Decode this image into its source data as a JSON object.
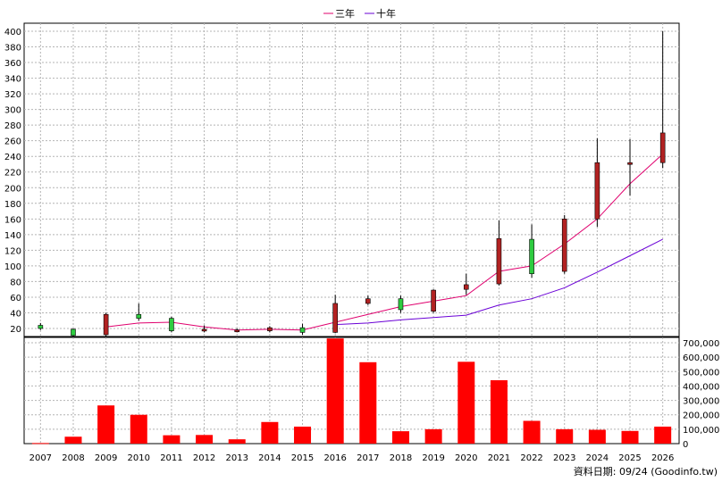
{
  "chart_data": [
    {
      "type": "candlestick",
      "legend": [
        {
          "name": "三年",
          "color": "#e0006e"
        },
        {
          "name": "十年",
          "color": "#6a00d6"
        }
      ],
      "categories": [
        "2007",
        "2008",
        "2009",
        "2010",
        "2011",
        "2012",
        "2013",
        "2014",
        "2015",
        "2016",
        "2017",
        "2018",
        "2019",
        "2020",
        "2021",
        "2022",
        "2023",
        "2024",
        "2025",
        "2026"
      ],
      "candles": [
        {
          "open": 20,
          "close": 24,
          "high": 27,
          "low": 18,
          "color": "#2ecc40"
        },
        {
          "open": 19,
          "close": 11,
          "high": 20,
          "low": 9,
          "color": "#2ecc40"
        },
        {
          "open": 12,
          "close": 38,
          "high": 40,
          "low": 10,
          "color": "#b22222"
        },
        {
          "open": 38,
          "close": 33,
          "high": 52,
          "low": 30,
          "color": "#2ecc40"
        },
        {
          "open": 33,
          "close": 17,
          "high": 35,
          "low": 15,
          "color": "#2ecc40"
        },
        {
          "open": 18,
          "close": 19,
          "high": 24,
          "low": 15,
          "color": "#b22222"
        },
        {
          "open": 17,
          "close": 18,
          "high": 20,
          "low": 15,
          "color": "#b22222"
        },
        {
          "open": 17,
          "close": 21,
          "high": 23,
          "low": 15,
          "color": "#b22222"
        },
        {
          "open": 21,
          "close": 15,
          "high": 26,
          "low": 12,
          "color": "#2ecc40"
        },
        {
          "open": 15,
          "close": 52,
          "high": 63,
          "low": 14,
          "color": "#b22222"
        },
        {
          "open": 52,
          "close": 58,
          "high": 62,
          "low": 50,
          "color": "#b22222"
        },
        {
          "open": 58,
          "close": 44,
          "high": 62,
          "low": 40,
          "color": "#2ecc40"
        },
        {
          "open": 42,
          "close": 69,
          "high": 70,
          "low": 40,
          "color": "#b22222"
        },
        {
          "open": 70,
          "close": 76,
          "high": 90,
          "low": 63,
          "color": "#b22222"
        },
        {
          "open": 77,
          "close": 135,
          "high": 158,
          "low": 75,
          "color": "#b22222"
        },
        {
          "open": 134,
          "close": 90,
          "high": 153,
          "low": 85,
          "color": "#2ecc40"
        },
        {
          "open": 93,
          "close": 160,
          "high": 165,
          "low": 90,
          "color": "#b22222"
        },
        {
          "open": 160,
          "close": 232,
          "high": 263,
          "low": 150,
          "color": "#b22222"
        },
        {
          "open": 230,
          "close": 232,
          "high": 262,
          "low": 190,
          "color": "#b22222"
        },
        {
          "open": 232,
          "close": 270,
          "high": 400,
          "low": 225,
          "color": "#b22222"
        }
      ],
      "ma3": [
        null,
        null,
        22,
        27,
        28,
        22,
        18,
        19,
        18,
        28,
        38,
        48,
        55,
        62,
        93,
        100,
        128,
        160,
        205,
        243
      ],
      "ma10": [
        null,
        null,
        null,
        null,
        null,
        null,
        null,
        null,
        null,
        25,
        27,
        31,
        34,
        37,
        50,
        58,
        72,
        92,
        113,
        134
      ],
      "y_ticks": [
        20,
        40,
        60,
        80,
        100,
        120,
        140,
        160,
        180,
        200,
        220,
        240,
        260,
        280,
        300,
        320,
        340,
        360,
        380,
        400
      ],
      "ylim": [
        0,
        400
      ]
    },
    {
      "type": "bar",
      "categories": [
        "2007",
        "2008",
        "2009",
        "2010",
        "2011",
        "2012",
        "2013",
        "2014",
        "2015",
        "2016",
        "2017",
        "2018",
        "2019",
        "2020",
        "2021",
        "2022",
        "2023",
        "2024",
        "2025",
        "2026"
      ],
      "values": [
        4000,
        48000,
        265000,
        200000,
        58000,
        60000,
        30000,
        150000,
        118000,
        730000,
        565000,
        86000,
        100000,
        568000,
        440000,
        158000,
        100000,
        96000,
        88000,
        118000
      ],
      "color": "#ff0000",
      "y_ticks": [
        "0",
        "100,000",
        "200,000",
        "300,000",
        "400,000",
        "500,000",
        "600,000",
        "700,000"
      ],
      "ylim": [
        0,
        740000
      ]
    }
  ],
  "footer": {
    "date_text": "資料日期: 09/24  (Goodinfo.tw)"
  }
}
